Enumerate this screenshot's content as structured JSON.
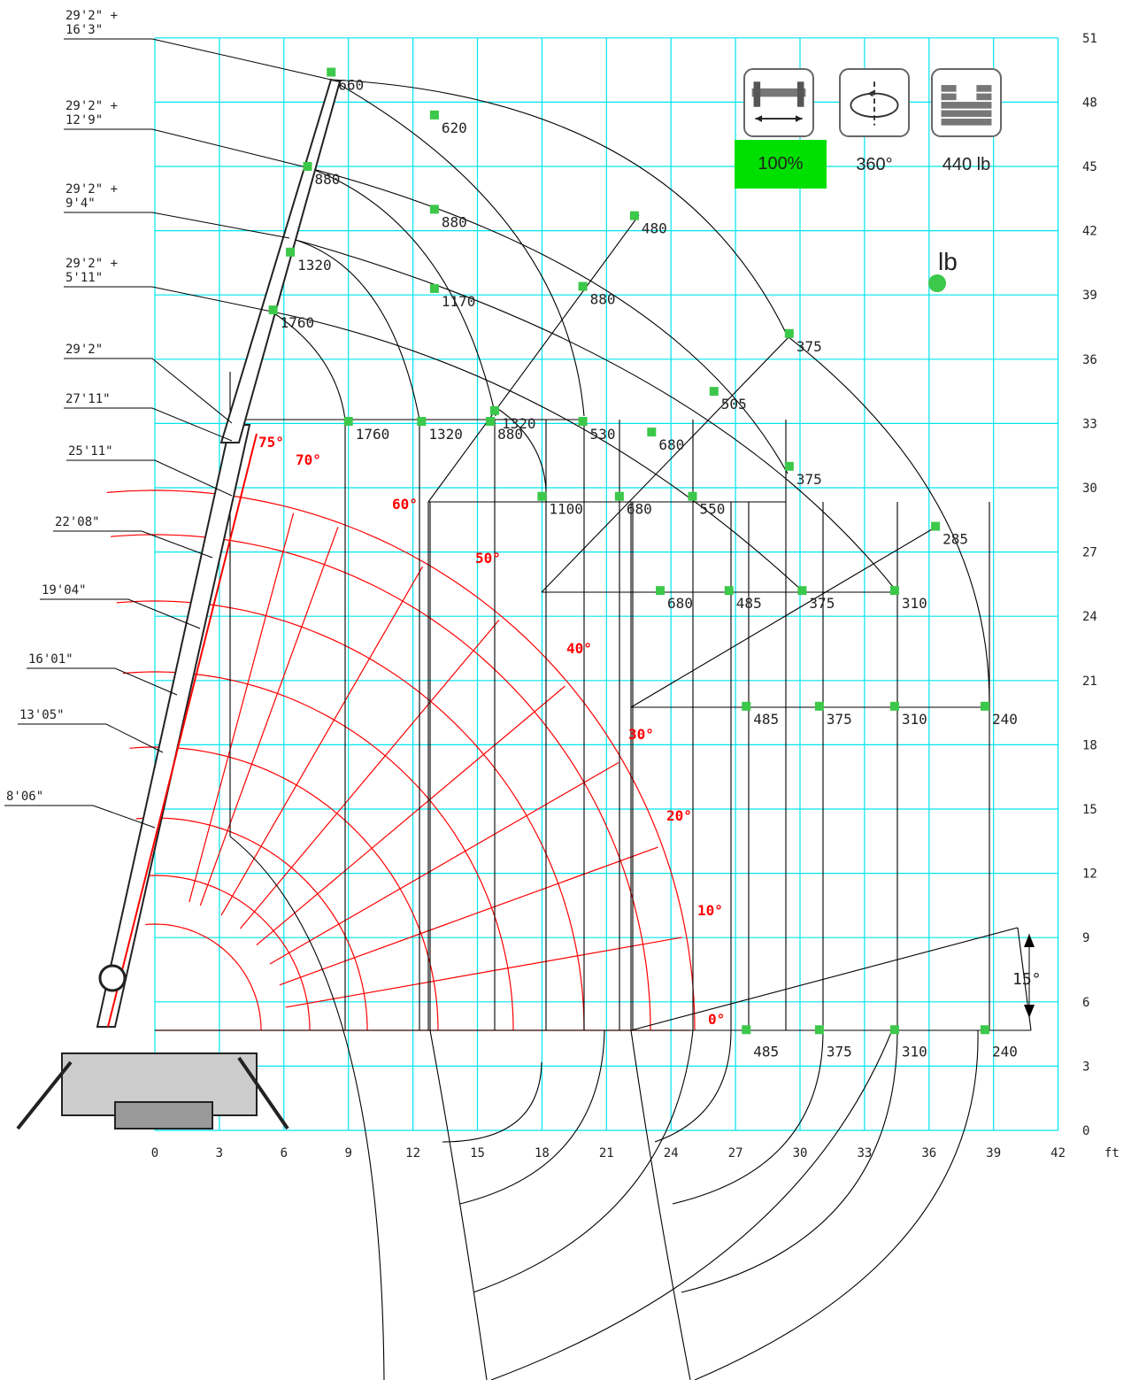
{
  "unit_marker": "lb",
  "x_unit": "ft",
  "x_ticks": [
    "0",
    "3",
    "6",
    "9",
    "12",
    "15",
    "18",
    "21",
    "24",
    "27",
    "30",
    "33",
    "36",
    "39",
    "42"
  ],
  "y_ticks": [
    "0",
    "3",
    "6",
    "9",
    "12",
    "15",
    "18",
    "21",
    "24",
    "27",
    "30",
    "33",
    "36",
    "39",
    "42",
    "45",
    "48",
    "51"
  ],
  "settings": {
    "outrigger_label": "100%",
    "rotation_label": "360°",
    "load_label": "440 lb",
    "active_color": "#00e000"
  },
  "jib_angle_label": "15°",
  "boom_length_labels": [
    [
      "29'2\" +",
      "16'3\""
    ],
    [
      "29'2\" +",
      "12'9\""
    ],
    [
      "29'2\" +",
      "9'4\""
    ],
    [
      "29'2\" +",
      "5'11\""
    ],
    [
      "29'2\""
    ],
    [
      "27'11\""
    ],
    [
      "25'11\""
    ],
    [
      "22'08\""
    ],
    [
      "19'04\""
    ],
    [
      "16'01\""
    ],
    [
      "13'05\""
    ],
    [
      "8'06\""
    ]
  ],
  "angle_labels": [
    "75°",
    "70°",
    "60°",
    "50°",
    "40°",
    "30°",
    "20°",
    "10°",
    "0°"
  ],
  "colors": {
    "grid": "#00e5ee",
    "angle": "#ff0000",
    "point": "#3cc84a",
    "line": "#000000"
  },
  "chart_data": {
    "type": "scatter",
    "xlabel": "ft",
    "xlim": [
      0,
      42
    ],
    "ylim": [
      0,
      51
    ],
    "points": [
      {
        "x": 8.2,
        "y": 49.4,
        "label": "660"
      },
      {
        "x": 13.0,
        "y": 47.4,
        "label": "620"
      },
      {
        "x": 7.1,
        "y": 45.0,
        "label": "880"
      },
      {
        "x": 13.0,
        "y": 43.0,
        "label": "880"
      },
      {
        "x": 22.3,
        "y": 42.7,
        "label": "480"
      },
      {
        "x": 6.3,
        "y": 41.0,
        "label": "1320"
      },
      {
        "x": 13.0,
        "y": 39.3,
        "label": "1170"
      },
      {
        "x": 19.9,
        "y": 39.4,
        "label": "880"
      },
      {
        "x": 5.5,
        "y": 38.3,
        "label": "1760"
      },
      {
        "x": 29.5,
        "y": 37.2,
        "label": "375"
      },
      {
        "x": 26.0,
        "y": 34.5,
        "label": "505"
      },
      {
        "x": 15.8,
        "y": 33.6,
        "label": "1320"
      },
      {
        "x": 9.0,
        "y": 33.1,
        "label": "1760"
      },
      {
        "x": 12.4,
        "y": 33.1,
        "label": "1320"
      },
      {
        "x": 15.6,
        "y": 33.1,
        "label": "880"
      },
      {
        "x": 19.9,
        "y": 33.1,
        "label": "530"
      },
      {
        "x": 23.1,
        "y": 32.6,
        "label": "680"
      },
      {
        "x": 29.5,
        "y": 31.0,
        "label": "375"
      },
      {
        "x": 18.0,
        "y": 29.6,
        "label": "1100"
      },
      {
        "x": 21.6,
        "y": 29.6,
        "label": "680"
      },
      {
        "x": 25.0,
        "y": 29.6,
        "label": "550"
      },
      {
        "x": 36.3,
        "y": 28.2,
        "label": "285"
      },
      {
        "x": 23.5,
        "y": 25.2,
        "label": "680"
      },
      {
        "x": 26.7,
        "y": 25.2,
        "label": "485"
      },
      {
        "x": 30.1,
        "y": 25.2,
        "label": "375"
      },
      {
        "x": 34.4,
        "y": 25.2,
        "label": "310"
      },
      {
        "x": 27.5,
        "y": 19.8,
        "label": "485"
      },
      {
        "x": 30.9,
        "y": 19.8,
        "label": "375"
      },
      {
        "x": 34.4,
        "y": 19.8,
        "label": "310"
      },
      {
        "x": 38.6,
        "y": 19.8,
        "label": "240"
      },
      {
        "x": 27.5,
        "y": 4.7,
        "label": "485"
      },
      {
        "x": 30.9,
        "y": 4.7,
        "label": "375"
      },
      {
        "x": 34.4,
        "y": 4.7,
        "label": "310"
      },
      {
        "x": 38.6,
        "y": 4.7,
        "label": "240"
      }
    ]
  }
}
